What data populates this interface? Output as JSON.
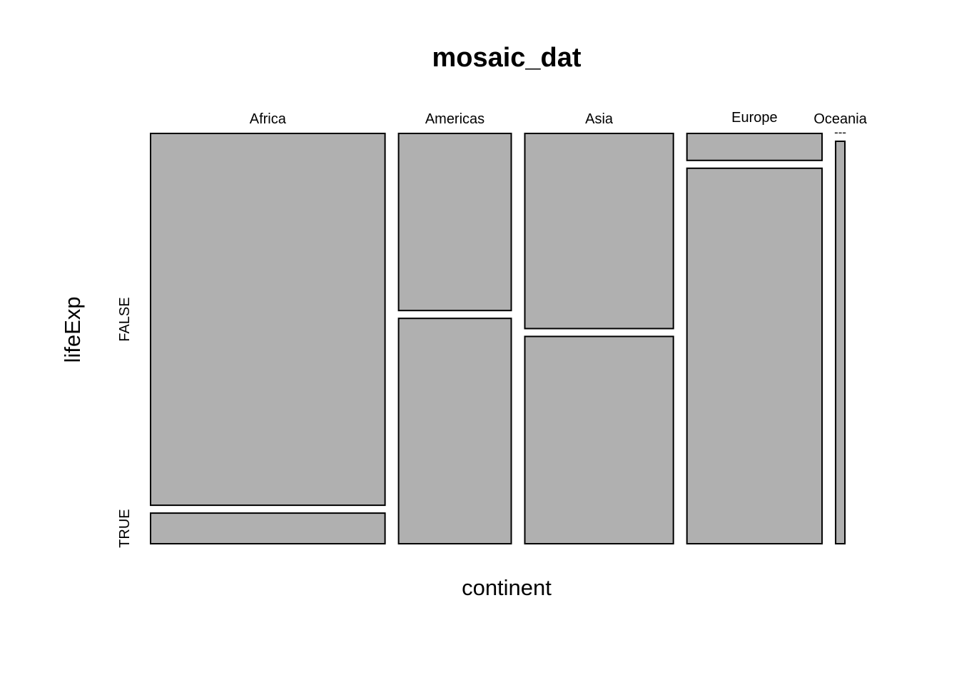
{
  "chart_data": {
    "type": "mosaic",
    "title": "mosaic_dat",
    "xlabel": "continent",
    "ylabel": "lifeExp",
    "categories": [
      "Africa",
      "Americas",
      "Asia",
      "Europe",
      "Oceania"
    ],
    "levels": [
      "FALSE",
      "TRUE"
    ],
    "column_fractions": [
      0.3568,
      0.1714,
      0.2261,
      0.2056,
      0.0141
    ],
    "cells": [
      {
        "category": "Africa",
        "FALSE": 0.924,
        "TRUE": 0.076
      },
      {
        "category": "Americas",
        "FALSE": 0.44,
        "TRUE": 0.56
      },
      {
        "category": "Asia",
        "FALSE": 0.485,
        "TRUE": 0.515
      },
      {
        "category": "Europe",
        "FALSE": 0.067,
        "TRUE": 0.933
      },
      {
        "category": "Oceania",
        "FALSE": 0.0,
        "TRUE": 1.0
      }
    ],
    "fill_color": "#b0b0b0",
    "stroke_color": "#000000"
  }
}
